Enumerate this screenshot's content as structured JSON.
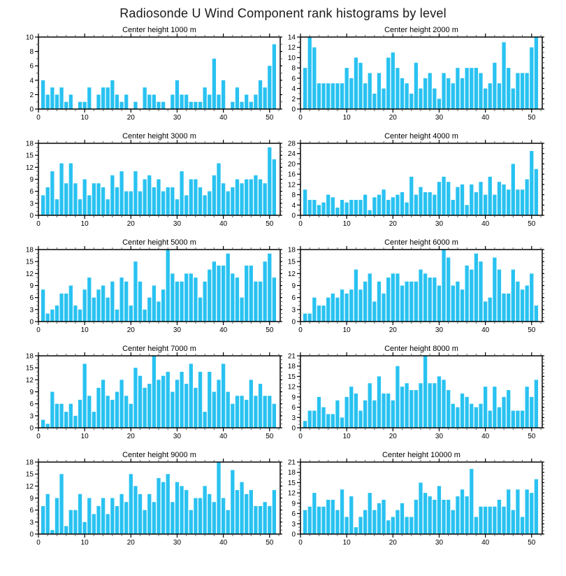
{
  "figure_title": "Radiosonde U Wind Component rank histograms by level",
  "colors": {
    "bar": "#29C2F1",
    "axis": "#000000",
    "minor_tick": "#555555",
    "text": "#000000"
  },
  "chart_data": [
    {
      "type": "bar",
      "title": "Center height 1000 m",
      "level_m": 1000,
      "xlabel": "",
      "ylabel": "",
      "grid": false,
      "legend": "none",
      "bins": 51,
      "x_range": [
        0,
        52.3
      ],
      "x_major_ticks": [
        0,
        10,
        20,
        30,
        40,
        50
      ],
      "ylim": [
        0,
        10
      ],
      "ytick_step": 2,
      "values": [
        4,
        2,
        3,
        2,
        3,
        1,
        2,
        0,
        1,
        1,
        3,
        0,
        2,
        3,
        3,
        4,
        2,
        1,
        2,
        0,
        1,
        0,
        3,
        2,
        2,
        1,
        1,
        0,
        2,
        4,
        2,
        2,
        1,
        1,
        1,
        3,
        2,
        7,
        2,
        4,
        0,
        1,
        3,
        1,
        2,
        1,
        2,
        4,
        3,
        6,
        9
      ]
    },
    {
      "type": "bar",
      "title": "Center height 2000 m",
      "level_m": 2000,
      "xlabel": "",
      "ylabel": "",
      "grid": false,
      "legend": "none",
      "bins": 51,
      "x_range": [
        0,
        52.3
      ],
      "x_major_ticks": [
        0,
        10,
        20,
        30,
        40,
        50
      ],
      "ylim": [
        0,
        14
      ],
      "ytick_step": 2,
      "values": [
        8,
        14,
        12,
        5,
        5,
        5,
        5,
        5,
        5,
        8,
        6,
        10,
        9,
        5,
        7,
        3,
        7,
        4,
        10,
        11,
        8,
        6,
        5,
        3,
        9,
        4,
        6,
        7,
        4,
        2,
        7,
        6,
        5,
        8,
        6,
        8,
        8,
        8,
        7,
        4,
        5,
        9,
        5,
        13,
        8,
        4,
        7,
        7,
        7,
        12,
        14
      ]
    },
    {
      "type": "bar",
      "title": "Center height 3000 m",
      "level_m": 3000,
      "xlabel": "",
      "ylabel": "",
      "grid": false,
      "legend": "none",
      "bins": 51,
      "x_range": [
        0,
        52.3
      ],
      "x_major_ticks": [
        0,
        10,
        20,
        30,
        40,
        50
      ],
      "ylim": [
        0,
        18
      ],
      "ytick_step": 3,
      "values": [
        5,
        7,
        11,
        4,
        13,
        8,
        13,
        8,
        4,
        9,
        5,
        8,
        8,
        7,
        4,
        10,
        7,
        11,
        6,
        6,
        11,
        6,
        9,
        10,
        7,
        9,
        6,
        7,
        7,
        4,
        11,
        5,
        9,
        9,
        7,
        5,
        6,
        10,
        13,
        8,
        6,
        7,
        9,
        8,
        9,
        9,
        10,
        9,
        8,
        17,
        14
      ]
    },
    {
      "type": "bar",
      "title": "Center height 4000 m",
      "level_m": 4000,
      "xlabel": "",
      "ylabel": "",
      "grid": false,
      "legend": "none",
      "bins": 51,
      "x_range": [
        0,
        52.3
      ],
      "x_major_ticks": [
        0,
        10,
        20,
        30,
        40,
        50
      ],
      "ylim": [
        0,
        28
      ],
      "ytick_step": 4,
      "values": [
        10,
        6,
        6,
        4,
        5,
        8,
        7,
        3,
        6,
        5,
        6,
        6,
        6,
        8,
        2,
        7,
        8,
        10,
        6,
        7,
        8,
        9,
        5,
        15,
        8,
        11,
        9,
        9,
        8,
        13,
        15,
        13,
        6,
        11,
        12,
        4,
        12,
        9,
        13,
        8,
        15,
        8,
        13,
        12,
        10,
        20,
        10,
        10,
        14,
        25,
        18
      ]
    },
    {
      "type": "bar",
      "title": "Center height 5000 m",
      "level_m": 5000,
      "xlabel": "",
      "ylabel": "",
      "grid": false,
      "legend": "none",
      "bins": 51,
      "x_range": [
        0,
        52.3
      ],
      "x_major_ticks": [
        0,
        10,
        20,
        30,
        40,
        50
      ],
      "ylim": [
        0,
        18
      ],
      "ytick_step": 3,
      "values": [
        8,
        2,
        3,
        4,
        7,
        7,
        9,
        4,
        3,
        8,
        11,
        6,
        8,
        9,
        6,
        10,
        3,
        11,
        10,
        4,
        15,
        10,
        3,
        6,
        9,
        5,
        8,
        18,
        12,
        10,
        10,
        12,
        12,
        11,
        6,
        10,
        13,
        15,
        14,
        14,
        17,
        12,
        11,
        6,
        14,
        14,
        10,
        10,
        15,
        17,
        11
      ]
    },
    {
      "type": "bar",
      "title": "Center height 6000 m",
      "level_m": 6000,
      "xlabel": "",
      "ylabel": "",
      "grid": false,
      "legend": "none",
      "bins": 51,
      "x_range": [
        0,
        52.3
      ],
      "x_major_ticks": [
        0,
        10,
        20,
        30,
        40,
        50
      ],
      "ylim": [
        0,
        18
      ],
      "ytick_step": 3,
      "values": [
        2,
        2,
        6,
        4,
        4,
        6,
        7,
        6,
        8,
        7,
        8,
        13,
        8,
        10,
        12,
        5,
        10,
        7,
        11,
        12,
        12,
        9,
        10,
        10,
        10,
        13,
        12,
        11,
        11,
        9,
        18,
        16,
        9,
        10,
        8,
        14,
        13,
        17,
        15,
        5,
        6,
        16,
        13,
        7,
        7,
        13,
        10,
        8,
        9,
        12,
        4
      ]
    },
    {
      "type": "bar",
      "title": "Center height 7000 m",
      "level_m": 7000,
      "xlabel": "",
      "ylabel": "",
      "grid": false,
      "legend": "none",
      "bins": 51,
      "x_range": [
        0,
        52.3
      ],
      "x_major_ticks": [
        0,
        10,
        20,
        30,
        40,
        50
      ],
      "ylim": [
        0,
        18
      ],
      "ytick_step": 3,
      "values": [
        2,
        1,
        9,
        6,
        6,
        4,
        6,
        3,
        7,
        16,
        8,
        4,
        10,
        12,
        8,
        7,
        9,
        12,
        8,
        6,
        15,
        13,
        10,
        11,
        18,
        12,
        13,
        14,
        9,
        12,
        14,
        11,
        16,
        10,
        14,
        4,
        14,
        9,
        12,
        16,
        9,
        6,
        8,
        8,
        7,
        12,
        8,
        11,
        8,
        8,
        6
      ]
    },
    {
      "type": "bar",
      "title": "Center height 8000 m",
      "level_m": 8000,
      "xlabel": "",
      "ylabel": "",
      "grid": false,
      "legend": "none",
      "bins": 51,
      "x_range": [
        0,
        52.3
      ],
      "x_major_ticks": [
        0,
        10,
        20,
        30,
        40,
        50
      ],
      "ylim": [
        0,
        21
      ],
      "ytick_step": 3,
      "values": [
        2,
        5,
        5,
        9,
        6,
        4,
        4,
        8,
        3,
        9,
        12,
        10,
        5,
        8,
        13,
        8,
        15,
        10,
        10,
        8,
        18,
        12,
        13,
        11,
        11,
        13,
        21,
        13,
        13,
        15,
        14,
        11,
        7,
        6,
        10,
        9,
        7,
        6,
        7,
        12,
        5,
        12,
        6,
        9,
        11,
        5,
        5,
        5,
        12,
        9,
        14
      ]
    },
    {
      "type": "bar",
      "title": "Center height 9000 m",
      "level_m": 9000,
      "xlabel": "",
      "ylabel": "",
      "grid": false,
      "legend": "none",
      "bins": 51,
      "x_range": [
        0,
        52.3
      ],
      "x_major_ticks": [
        0,
        10,
        20,
        30,
        40,
        50
      ],
      "ylim": [
        0,
        18
      ],
      "ytick_step": 3,
      "values": [
        7,
        10,
        1,
        9,
        15,
        2,
        6,
        6,
        10,
        3,
        9,
        5,
        7,
        9,
        5,
        9,
        7,
        10,
        8,
        15,
        12,
        10,
        6,
        10,
        8,
        14,
        13,
        15,
        8,
        13,
        12,
        11,
        6,
        9,
        9,
        12,
        10,
        8,
        18,
        9,
        6,
        16,
        11,
        13,
        10,
        11,
        7,
        7,
        8,
        7,
        11
      ]
    },
    {
      "type": "bar",
      "title": "Center height 10000 m",
      "level_m": 10000,
      "xlabel": "",
      "ylabel": "",
      "grid": false,
      "legend": "none",
      "bins": 51,
      "x_range": [
        0,
        52.3
      ],
      "x_major_ticks": [
        0,
        10,
        20,
        30,
        40,
        50
      ],
      "ylim": [
        0,
        21
      ],
      "ytick_step": 3,
      "values": [
        7,
        8,
        12,
        8,
        8,
        10,
        10,
        7,
        13,
        5,
        11,
        2,
        5,
        7,
        12,
        7,
        9,
        10,
        4,
        5,
        7,
        9,
        5,
        5,
        10,
        15,
        12,
        11,
        10,
        14,
        10,
        10,
        7,
        11,
        13,
        11,
        19,
        5,
        8,
        8,
        8,
        8,
        10,
        8,
        13,
        7,
        13,
        5,
        13,
        12,
        16
      ]
    }
  ]
}
